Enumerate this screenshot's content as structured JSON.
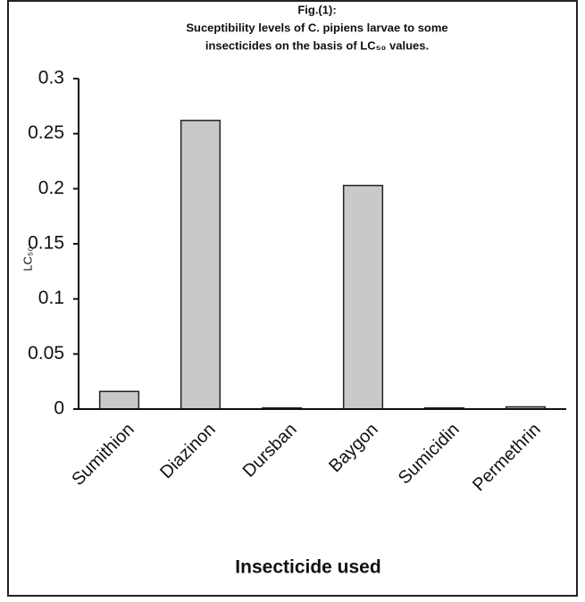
{
  "chart_data": {
    "type": "bar",
    "title": [
      "Fig.(1):",
      "Suceptibility levels of C. pipiens larvae to some",
      "insecticides on the basis of LC₅₀ values."
    ],
    "ylabel": "LC₅₀",
    "xlabel": "Insecticide used",
    "categories": [
      "Sumithion",
      "Diazinon",
      "Dursban",
      "Baygon",
      "Sumicidin",
      "Permethrin"
    ],
    "values": [
      0.016,
      0.262,
      0.001,
      0.203,
      0.001,
      0.002
    ],
    "color": "#c9c9c9",
    "ylim": [
      0,
      0.3
    ],
    "yticks": [
      0,
      0.05,
      0.1,
      0.15,
      0.2,
      0.25,
      0.3
    ],
    "grid": false
  }
}
